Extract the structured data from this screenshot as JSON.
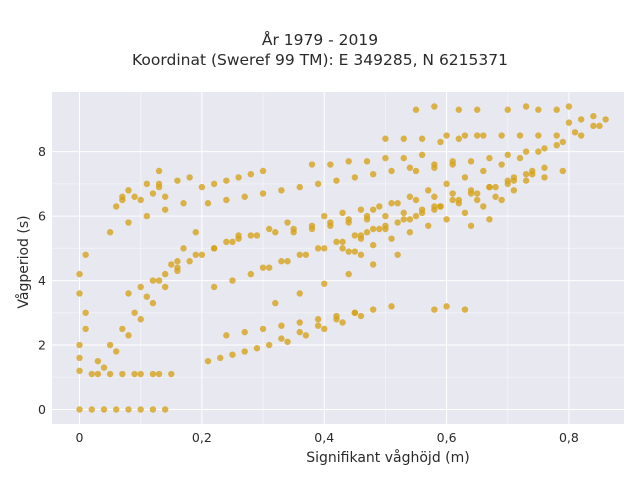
{
  "chart_data": {
    "type": "scatter",
    "title": [
      "År 1979 - 2019",
      "Koordinat (Sweref 99 TM): E 349285, N 6215371"
    ],
    "xlabel": "Signifikant våghöjd (m)",
    "ylabel": "Vågperiod (s)",
    "xlim": [
      -0.045,
      0.89
    ],
    "ylim": [
      -0.45,
      9.85
    ],
    "x_ticks": [
      0,
      0.2,
      0.4,
      0.6,
      0.8
    ],
    "x_tick_labels": [
      "0",
      "0,2",
      "0,4",
      "0,6",
      "0,8"
    ],
    "y_ticks": [
      0,
      2,
      4,
      6,
      8
    ],
    "y_tick_labels": [
      "0",
      "2",
      "4",
      "6",
      "8"
    ],
    "grid": true,
    "background": "#e8e8f0",
    "marker_color": "#d4a21c",
    "series": [
      {
        "x": [
          0.0,
          0.02,
          0.04,
          0.06,
          0.08,
          0.1,
          0.12,
          0.14,
          0.0,
          0.0,
          0.0,
          0.01,
          0.01,
          0.0,
          0.0,
          0.01,
          0.02,
          0.03,
          0.05,
          0.07,
          0.09,
          0.1,
          0.12,
          0.13,
          0.15,
          0.03,
          0.05,
          0.07,
          0.09,
          0.11,
          0.13,
          0.15,
          0.17,
          0.19,
          0.04,
          0.06,
          0.08,
          0.1,
          0.12,
          0.14,
          0.16,
          0.05,
          0.08,
          0.11,
          0.14,
          0.17,
          0.07,
          0.09,
          0.12,
          0.13,
          0.16,
          0.18,
          0.2,
          0.22,
          0.24,
          0.26,
          0.28,
          0.3,
          0.21,
          0.23,
          0.25,
          0.27,
          0.29,
          0.31,
          0.33,
          0.36,
          0.39,
          0.42,
          0.45,
          0.34,
          0.37,
          0.4,
          0.43,
          0.46,
          0.21,
          0.24,
          0.27,
          0.3,
          0.33,
          0.36,
          0.39,
          0.42,
          0.45,
          0.48,
          0.51,
          0.54,
          0.58,
          0.61,
          0.22,
          0.25,
          0.28,
          0.31,
          0.34,
          0.37,
          0.4,
          0.43,
          0.46,
          0.49,
          0.52,
          0.55,
          0.16,
          0.19,
          0.22,
          0.25,
          0.28,
          0.31,
          0.34,
          0.47,
          0.5,
          0.53,
          0.56,
          0.59,
          0.62,
          0.65,
          0.68,
          0.71,
          0.74,
          0.48,
          0.51,
          0.54,
          0.57,
          0.6,
          0.63,
          0.66,
          0.69,
          0.72,
          0.75,
          0.78,
          0.45,
          0.48,
          0.51,
          0.54,
          0.57,
          0.6,
          0.63,
          0.66,
          0.69,
          0.55,
          0.58,
          0.61,
          0.64,
          0.67,
          0.7,
          0.73,
          0.76,
          0.79,
          0.82,
          0.85,
          0.6,
          0.63,
          0.66,
          0.69,
          0.72,
          0.75,
          0.78,
          0.81,
          0.84,
          0.86,
          0.58,
          0.61,
          0.64,
          0.67,
          0.7,
          0.73,
          0.76,
          0.3,
          0.33,
          0.36,
          0.39,
          0.42,
          0.45,
          0.48,
          0.32,
          0.36,
          0.4,
          0.44,
          0.48,
          0.52,
          0.38,
          0.41,
          0.44,
          0.47,
          0.5,
          0.53,
          0.56,
          0.43,
          0.46,
          0.5,
          0.54,
          0.58,
          0.1,
          0.11,
          0.13,
          0.14,
          0.13,
          0.06,
          0.07,
          0.08,
          0.55,
          0.58,
          0.62,
          0.65,
          0.7,
          0.5,
          0.53,
          0.56,
          0.59,
          0.62,
          0.65,
          0.73,
          0.75,
          0.78,
          0.8,
          0.58,
          0.6,
          0.63,
          0.8,
          0.82,
          0.84,
          0.64,
          0.67,
          0.44,
          0.46,
          0.71,
          0.74,
          0.4,
          0.43,
          0.46,
          0.49,
          0.52,
          0.55,
          0.58,
          0.61,
          0.64,
          0.67,
          0.7,
          0.73,
          0.76,
          0.79,
          0.35,
          0.38,
          0.41,
          0.44,
          0.47,
          0.5,
          0.53,
          0.56,
          0.59,
          0.62,
          0.65,
          0.68,
          0.71,
          0.26,
          0.29,
          0.32,
          0.35,
          0.38,
          0.41,
          0.44,
          0.47,
          0.24,
          0.27,
          0.3,
          0.33,
          0.36,
          0.39,
          0.42,
          0.45,
          0.48,
          0.51,
          0.08,
          0.1,
          0.12,
          0.14,
          0.16,
          0.18,
          0.2,
          0.22,
          0.24,
          0.26
        ],
        "y": [
          0.0,
          0.0,
          0.0,
          0.0,
          0.0,
          0.0,
          0.0,
          0.0,
          1.2,
          1.6,
          2.0,
          2.5,
          3.0,
          3.6,
          4.2,
          4.8,
          1.1,
          1.1,
          1.1,
          1.1,
          1.1,
          1.1,
          1.1,
          1.1,
          1.1,
          1.5,
          2.0,
          2.5,
          3.0,
          3.5,
          4.0,
          4.5,
          5.0,
          5.5,
          1.3,
          1.8,
          2.3,
          2.8,
          3.3,
          3.8,
          4.3,
          5.5,
          5.8,
          6.0,
          6.2,
          6.4,
          6.5,
          6.6,
          6.7,
          7.0,
          7.1,
          7.2,
          6.9,
          7.0,
          7.1,
          7.2,
          7.3,
          7.4,
          1.5,
          1.6,
          1.7,
          1.8,
          1.9,
          2.0,
          2.2,
          2.4,
          2.6,
          2.8,
          3.0,
          2.1,
          2.3,
          2.5,
          2.7,
          2.9,
          6.4,
          6.5,
          6.6,
          6.7,
          6.8,
          6.9,
          7.0,
          7.1,
          7.2,
          7.3,
          7.4,
          7.5,
          7.6,
          7.7,
          3.8,
          4.0,
          4.2,
          4.4,
          4.6,
          4.8,
          5.0,
          5.2,
          5.4,
          5.6,
          5.8,
          6.0,
          4.6,
          4.8,
          5.0,
          5.2,
          5.4,
          5.6,
          5.8,
          5.5,
          5.7,
          5.9,
          6.1,
          6.3,
          6.5,
          6.7,
          6.9,
          7.1,
          7.3,
          6.2,
          6.4,
          6.6,
          6.8,
          7.0,
          7.2,
          7.4,
          7.6,
          7.8,
          8.0,
          8.2,
          4.9,
          5.1,
          5.3,
          5.5,
          5.7,
          5.9,
          6.1,
          6.3,
          6.5,
          7.4,
          7.5,
          7.6,
          7.7,
          7.8,
          7.9,
          8.0,
          8.1,
          8.3,
          8.5,
          8.8,
          8.5,
          8.5,
          8.5,
          8.5,
          8.5,
          8.5,
          8.5,
          8.6,
          8.8,
          9.0,
          6.3,
          6.5,
          6.7,
          6.9,
          7.1,
          7.3,
          7.5,
          4.4,
          4.6,
          4.8,
          5.0,
          5.2,
          5.4,
          5.6,
          3.3,
          3.6,
          3.9,
          4.2,
          4.5,
          4.8,
          7.6,
          7.6,
          7.7,
          7.7,
          7.8,
          7.8,
          7.9,
          5.0,
          5.3,
          5.6,
          5.9,
          6.2,
          6.5,
          7.0,
          6.9,
          6.6,
          7.4,
          6.3,
          6.6,
          6.8,
          9.3,
          9.4,
          9.3,
          9.3,
          9.3,
          8.4,
          8.4,
          8.4,
          8.3,
          8.4,
          8.5,
          9.4,
          9.3,
          9.3,
          9.4,
          3.1,
          3.2,
          3.1,
          8.9,
          9.0,
          9.1,
          5.7,
          5.9,
          4.9,
          4.8,
          7.2,
          7.4,
          6.0,
          6.1,
          6.2,
          6.3,
          6.4,
          6.5,
          6.6,
          6.7,
          6.8,
          6.9,
          7.0,
          7.1,
          7.2,
          7.4,
          5.5,
          5.6,
          5.7,
          5.8,
          5.9,
          6.0,
          6.1,
          6.2,
          6.3,
          6.4,
          6.5,
          6.6,
          6.8,
          5.3,
          5.4,
          5.5,
          5.6,
          5.7,
          5.8,
          5.9,
          6.0,
          2.3,
          2.4,
          2.5,
          2.6,
          2.7,
          2.8,
          2.9,
          3.0,
          3.1,
          3.2,
          3.6,
          3.8,
          4.0,
          4.2,
          4.4,
          4.6,
          4.8,
          5.0,
          5.2,
          5.4
        ]
      }
    ]
  }
}
